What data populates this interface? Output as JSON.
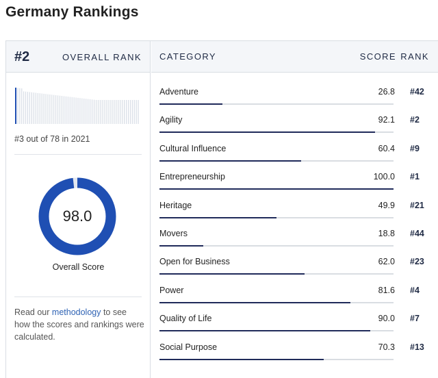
{
  "page": {
    "title": "Germany Rankings"
  },
  "overall": {
    "rank": "#2",
    "rank_label": "OVERALL RANK",
    "history_text": "#3 out of 78 in 2021",
    "score": "98.0",
    "score_value": 98.0,
    "score_label": "Overall Score",
    "accent_color": "#1f4fb3",
    "track_color": "#e3e8f0"
  },
  "methodology": {
    "pre": "Read our ",
    "link": "methodology",
    "post": " to see how the scores and rankings were calculated."
  },
  "table": {
    "col_category": "CATEGORY",
    "col_score": "SCORE",
    "col_rank": "RANK",
    "rows": [
      {
        "category": "Adventure",
        "score": "26.8",
        "rank": "#42",
        "value": 26.8
      },
      {
        "category": "Agility",
        "score": "92.1",
        "rank": "#2",
        "value": 92.1
      },
      {
        "category": "Cultural Influence",
        "score": "60.4",
        "rank": "#9",
        "value": 60.4
      },
      {
        "category": "Entrepreneurship",
        "score": "100.0",
        "rank": "#1",
        "value": 100.0
      },
      {
        "category": "Heritage",
        "score": "49.9",
        "rank": "#21",
        "value": 49.9
      },
      {
        "category": "Movers",
        "score": "18.8",
        "rank": "#44",
        "value": 18.8
      },
      {
        "category": "Open for Business",
        "score": "62.0",
        "rank": "#23",
        "value": 62.0
      },
      {
        "category": "Power",
        "score": "81.6",
        "rank": "#4",
        "value": 81.6
      },
      {
        "category": "Quality of Life",
        "score": "90.0",
        "rank": "#7",
        "value": 90.0
      },
      {
        "category": "Social Purpose",
        "score": "70.3",
        "rank": "#13",
        "value": 70.3
      }
    ]
  }
}
